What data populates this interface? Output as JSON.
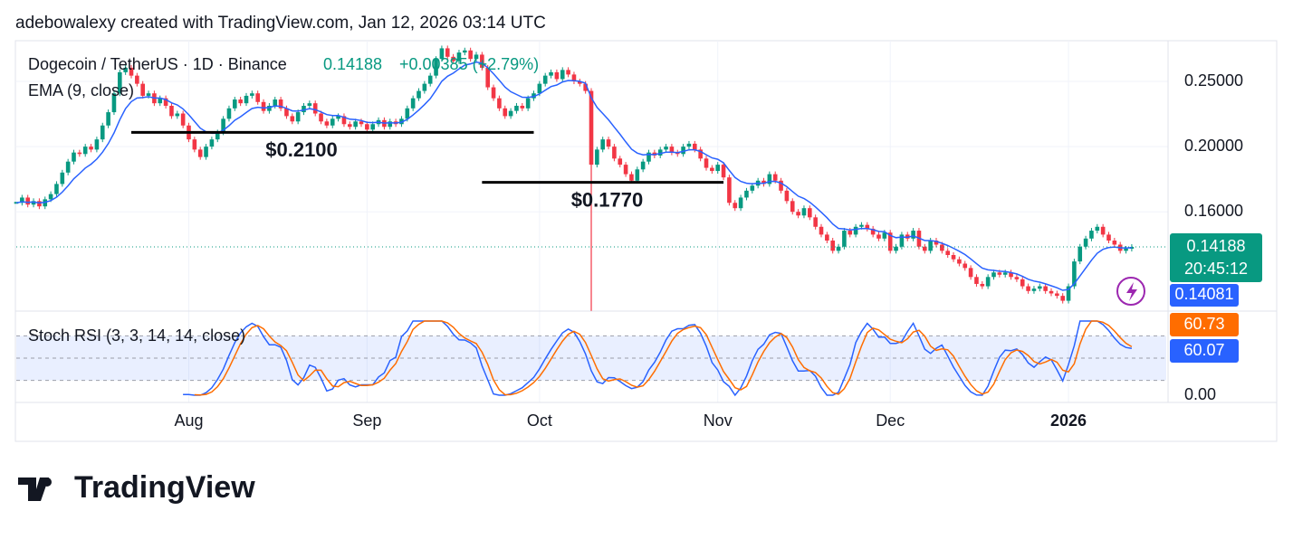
{
  "header": "adebowalexy created with TradingView.com, Jan 12, 2026 03:14 UTC",
  "logo": "TradingView",
  "chart_data": [
    {
      "type": "candlestick",
      "symbol": "Dogecoin / TetherUS · 1D · Binance",
      "last": 0.14188,
      "change": "+0.00385 (+2.79%)",
      "indicator": "EMA (9, close)",
      "countdown": "20:45:12",
      "ema_last": 0.14081,
      "close": [
        0.165,
        0.168,
        0.164,
        0.166,
        0.163,
        0.167,
        0.17,
        0.176,
        0.183,
        0.19,
        0.196,
        0.195,
        0.2,
        0.198,
        0.205,
        0.215,
        0.225,
        0.24,
        0.258,
        0.262,
        0.255,
        0.248,
        0.238,
        0.24,
        0.232,
        0.236,
        0.23,
        0.222,
        0.224,
        0.215,
        0.205,
        0.198,
        0.193,
        0.2,
        0.205,
        0.21,
        0.22,
        0.228,
        0.235,
        0.232,
        0.238,
        0.24,
        0.233,
        0.226,
        0.23,
        0.235,
        0.228,
        0.222,
        0.218,
        0.225,
        0.23,
        0.232,
        0.224,
        0.218,
        0.215,
        0.22,
        0.222,
        0.216,
        0.214,
        0.218,
        0.216,
        0.212,
        0.216,
        0.219,
        0.214,
        0.218,
        0.216,
        0.22,
        0.228,
        0.236,
        0.242,
        0.248,
        0.255,
        0.27,
        0.28,
        0.272,
        0.268,
        0.276,
        0.278,
        0.27,
        0.274,
        0.262,
        0.245,
        0.236,
        0.228,
        0.222,
        0.226,
        0.23,
        0.228,
        0.236,
        0.24,
        0.248,
        0.255,
        0.258,
        0.252,
        0.26,
        0.256,
        0.25,
        0.248,
        0.242,
        0.188,
        0.198,
        0.205,
        0.2,
        0.192,
        0.188,
        0.182,
        0.178,
        0.185,
        0.19,
        0.196,
        0.194,
        0.198,
        0.2,
        0.196,
        0.195,
        0.2,
        0.202,
        0.198,
        0.192,
        0.186,
        0.184,
        0.188,
        0.18,
        0.165,
        0.162,
        0.168,
        0.172,
        0.175,
        0.178,
        0.176,
        0.182,
        0.178,
        0.172,
        0.166,
        0.16,
        0.158,
        0.162,
        0.157,
        0.152,
        0.148,
        0.145,
        0.14,
        0.142,
        0.15,
        0.148,
        0.152,
        0.153,
        0.151,
        0.148,
        0.146,
        0.149,
        0.14,
        0.142,
        0.148,
        0.146,
        0.15,
        0.142,
        0.14,
        0.145,
        0.143,
        0.14,
        0.138,
        0.136,
        0.134,
        0.132,
        0.128,
        0.125,
        0.124,
        0.128,
        0.13,
        0.129,
        0.13,
        0.128,
        0.127,
        0.124,
        0.122,
        0.123,
        0.124,
        0.122,
        0.121,
        0.12,
        0.118,
        0.124,
        0.135,
        0.142,
        0.146,
        0.15,
        0.152,
        0.148,
        0.145,
        0.143,
        0.14,
        0.141,
        0.14188
      ],
      "wick": {
        "index": 100,
        "low": 0.114
      },
      "up_color": "#089981",
      "down_color": "#f23645",
      "ema_color": "#2962ff",
      "log_scale": true,
      "ylim": [
        0.1139,
        0.2874
      ],
      "yticks": [
        {
          "value": 0.25,
          "label": "0.25000"
        },
        {
          "value": 0.2,
          "label": "0.20000"
        },
        {
          "value": 0.16,
          "label": "0.16000"
        }
      ],
      "xlim": [
        0,
        200
      ],
      "xticks": [
        {
          "value": 30,
          "label": "Aug"
        },
        {
          "value": 61,
          "label": "Sep"
        },
        {
          "value": 91,
          "label": "Oct"
        },
        {
          "value": 122,
          "label": "Nov"
        },
        {
          "value": 152,
          "label": "Dec"
        },
        {
          "value": 183,
          "label": "2026"
        }
      ],
      "annotations": [
        {
          "label": "$0.2100",
          "value": 0.21,
          "x": [
            20,
            90
          ]
        },
        {
          "label": "$0.1770",
          "value": 0.177,
          "x": [
            81,
            123
          ]
        }
      ]
    },
    {
      "type": "stoch",
      "title": "Stoch RSI (3, 3, 14, 14, close)",
      "ylim": [
        0,
        100
      ],
      "yticks": [
        {
          "value": 0,
          "label": "0.00"
        }
      ],
      "levels": [
        80,
        50,
        20
      ],
      "band_color": "#2962ff",
      "series": [
        {
          "color": "#2962ff",
          "last": 60.07
        },
        {
          "color": "#ff6d00",
          "last": 60.73
        }
      ]
    }
  ]
}
